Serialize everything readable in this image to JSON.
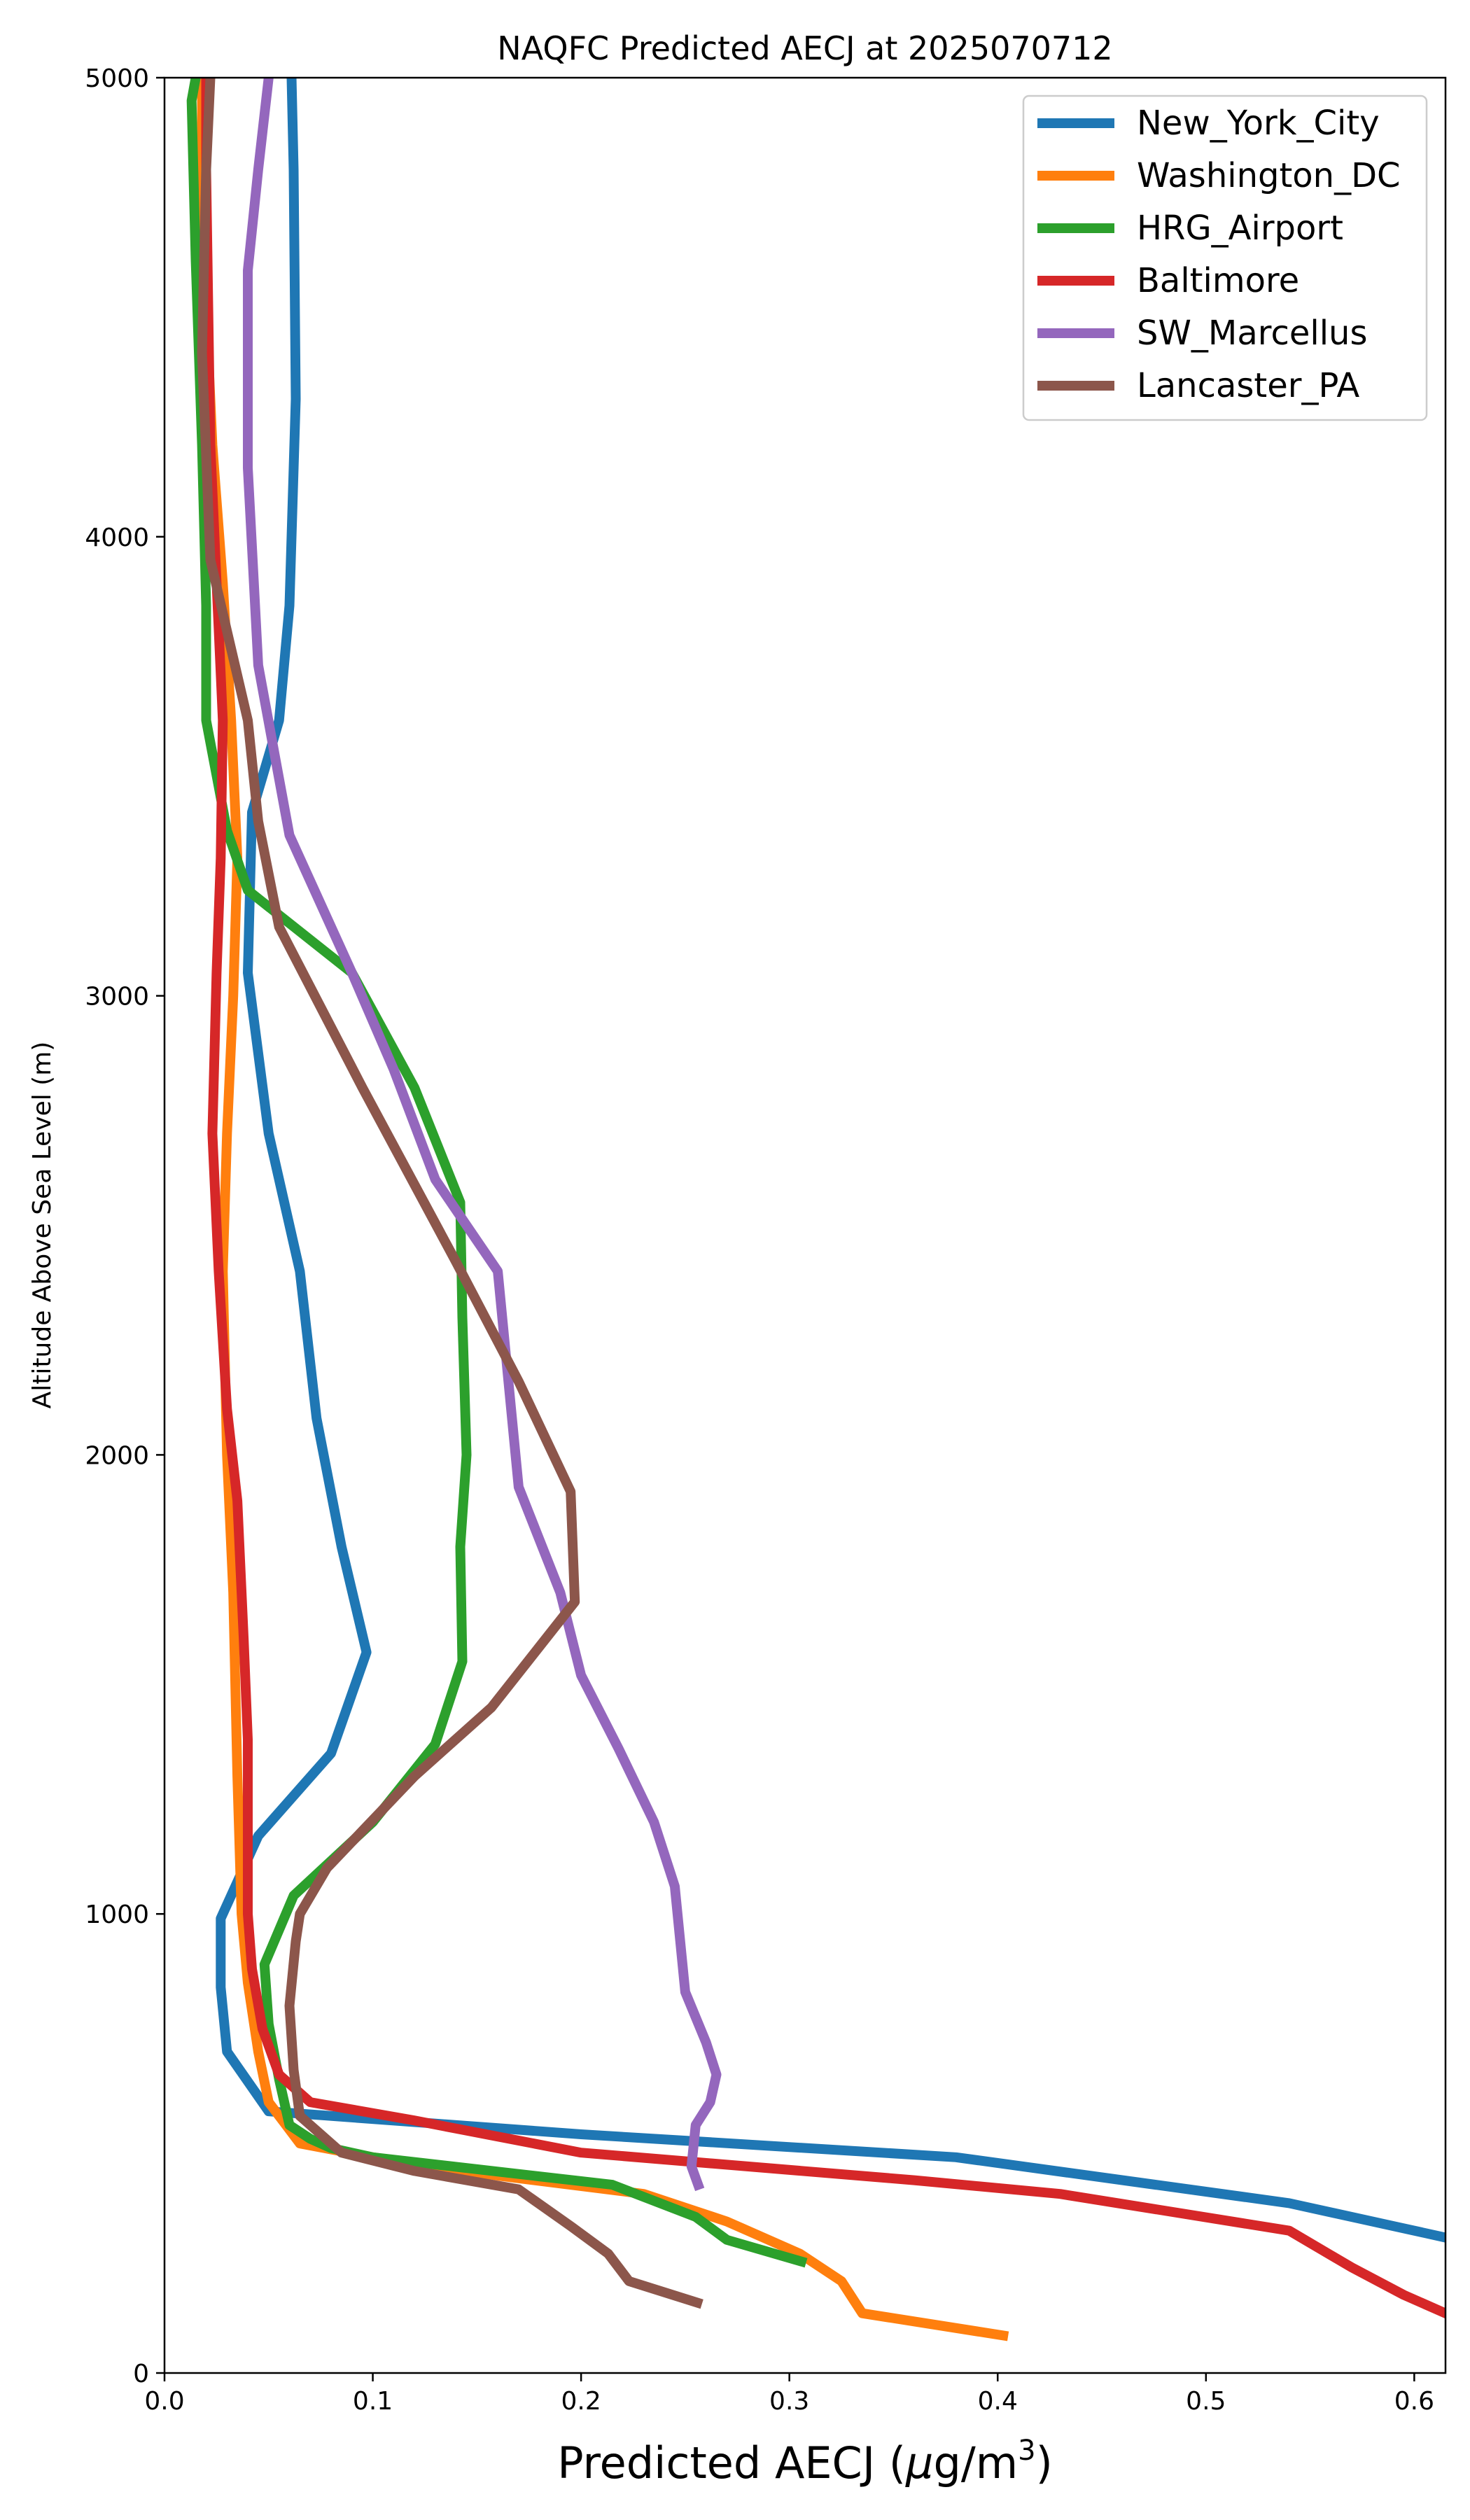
{
  "chart_data": {
    "type": "line",
    "title": "NAQFC Predicted AECJ at 2025070712",
    "xlabel_main": "Predicted AECJ (",
    "xlabel_mu": "μ",
    "xlabel_unit": "g/m",
    "xlabel_sup": "3",
    "xlabel_end": ")",
    "ylabel": "Altitude Above Sea Level (m)",
    "xlim": [
      0.0,
      0.615
    ],
    "ylim": [
      0,
      5000
    ],
    "xticks": [
      0.0,
      0.1,
      0.2,
      0.3,
      0.4,
      0.5,
      0.6
    ],
    "xtick_labels": [
      "0.0",
      "0.1",
      "0.2",
      "0.3",
      "0.4",
      "0.5",
      "0.6"
    ],
    "yticks": [
      0,
      1000,
      2000,
      3000,
      4000,
      5000
    ],
    "ytick_labels": [
      "0",
      "1000",
      "2000",
      "3000",
      "4000",
      "5000"
    ],
    "grid": false,
    "legend_position": "top-right",
    "series": [
      {
        "name": "New_York_City",
        "color": "#1f77b4",
        "points": [
          [
            0.62,
            290
          ],
          [
            0.54,
            370
          ],
          [
            0.38,
            470
          ],
          [
            0.2,
            520
          ],
          [
            0.05,
            570
          ],
          [
            0.03,
            700
          ],
          [
            0.027,
            840
          ],
          [
            0.027,
            990
          ],
          [
            0.045,
            1170
          ],
          [
            0.08,
            1350
          ],
          [
            0.097,
            1570
          ],
          [
            0.085,
            1800
          ],
          [
            0.073,
            2080
          ],
          [
            0.065,
            2400
          ],
          [
            0.05,
            2700
          ],
          [
            0.04,
            3050
          ],
          [
            0.042,
            3400
          ],
          [
            0.055,
            3600
          ],
          [
            0.06,
            3850
          ],
          [
            0.063,
            4300
          ],
          [
            0.062,
            4800
          ],
          [
            0.061,
            5000
          ]
        ]
      },
      {
        "name": "Washington_DC",
        "color": "#ff7f0e",
        "points": [
          [
            0.405,
            80
          ],
          [
            0.335,
            130
          ],
          [
            0.325,
            200
          ],
          [
            0.305,
            260
          ],
          [
            0.27,
            330
          ],
          [
            0.23,
            390
          ],
          [
            0.16,
            430
          ],
          [
            0.1,
            470
          ],
          [
            0.065,
            500
          ],
          [
            0.05,
            590
          ],
          [
            0.045,
            700
          ],
          [
            0.04,
            850
          ],
          [
            0.037,
            1000
          ],
          [
            0.035,
            1300
          ],
          [
            0.033,
            1700
          ],
          [
            0.03,
            2000
          ],
          [
            0.028,
            2400
          ],
          [
            0.03,
            2700
          ],
          [
            0.033,
            3000
          ],
          [
            0.035,
            3300
          ],
          [
            0.032,
            3600
          ],
          [
            0.028,
            3900
          ],
          [
            0.023,
            4200
          ],
          [
            0.02,
            4500
          ],
          [
            0.018,
            4800
          ],
          [
            0.018,
            5000
          ]
        ]
      },
      {
        "name": "HRG_Airport",
        "color": "#2ca02c",
        "points": [
          [
            0.308,
            240
          ],
          [
            0.27,
            290
          ],
          [
            0.255,
            340
          ],
          [
            0.215,
            410
          ],
          [
            0.1,
            470
          ],
          [
            0.08,
            490
          ],
          [
            0.07,
            510
          ],
          [
            0.06,
            540
          ],
          [
            0.055,
            640
          ],
          [
            0.05,
            760
          ],
          [
            0.048,
            890
          ],
          [
            0.062,
            1040
          ],
          [
            0.1,
            1200
          ],
          [
            0.13,
            1370
          ],
          [
            0.143,
            1550
          ],
          [
            0.142,
            1800
          ],
          [
            0.145,
            2000
          ],
          [
            0.143,
            2300
          ],
          [
            0.142,
            2550
          ],
          [
            0.12,
            2800
          ],
          [
            0.09,
            3050
          ],
          [
            0.04,
            3230
          ],
          [
            0.03,
            3360
          ],
          [
            0.02,
            3600
          ],
          [
            0.02,
            3850
          ],
          [
            0.018,
            4200
          ],
          [
            0.015,
            4600
          ],
          [
            0.013,
            4950
          ],
          [
            0.015,
            5000
          ]
        ]
      },
      {
        "name": "Baltimore",
        "color": "#d62728",
        "points": [
          [
            0.62,
            120
          ],
          [
            0.595,
            170
          ],
          [
            0.57,
            230
          ],
          [
            0.54,
            310
          ],
          [
            0.43,
            390
          ],
          [
            0.36,
            420
          ],
          [
            0.2,
            480
          ],
          [
            0.12,
            550
          ],
          [
            0.07,
            590
          ],
          [
            0.055,
            650
          ],
          [
            0.047,
            750
          ],
          [
            0.042,
            880
          ],
          [
            0.04,
            1000
          ],
          [
            0.04,
            1380
          ],
          [
            0.038,
            1600
          ],
          [
            0.035,
            1900
          ],
          [
            0.03,
            2100
          ],
          [
            0.026,
            2400
          ],
          [
            0.023,
            2700
          ],
          [
            0.025,
            3050
          ],
          [
            0.027,
            3300
          ],
          [
            0.028,
            3600
          ],
          [
            0.025,
            3900
          ],
          [
            0.022,
            4200
          ],
          [
            0.021,
            4500
          ],
          [
            0.02,
            4800
          ],
          [
            0.02,
            5000
          ]
        ]
      },
      {
        "name": "SW_Marcellus",
        "color": "#9467bd",
        "points": [
          [
            0.257,
            400
          ],
          [
            0.253,
            450
          ],
          [
            0.255,
            540
          ],
          [
            0.262,
            590
          ],
          [
            0.265,
            650
          ],
          [
            0.26,
            720
          ],
          [
            0.25,
            830
          ],
          [
            0.245,
            1060
          ],
          [
            0.235,
            1200
          ],
          [
            0.218,
            1360
          ],
          [
            0.2,
            1520
          ],
          [
            0.19,
            1700
          ],
          [
            0.17,
            1930
          ],
          [
            0.16,
            2400
          ],
          [
            0.13,
            2600
          ],
          [
            0.11,
            2840
          ],
          [
            0.09,
            3050
          ],
          [
            0.06,
            3350
          ],
          [
            0.045,
            3720
          ],
          [
            0.04,
            4150
          ],
          [
            0.04,
            4580
          ],
          [
            0.045,
            4800
          ],
          [
            0.05,
            5000
          ]
        ]
      },
      {
        "name": "Lancaster_PA",
        "color": "#8c564b",
        "points": [
          [
            0.258,
            150
          ],
          [
            0.223,
            200
          ],
          [
            0.213,
            260
          ],
          [
            0.195,
            320
          ],
          [
            0.17,
            400
          ],
          [
            0.12,
            440
          ],
          [
            0.085,
            480
          ],
          [
            0.075,
            520
          ],
          [
            0.065,
            560
          ],
          [
            0.062,
            660
          ],
          [
            0.06,
            800
          ],
          [
            0.063,
            940
          ],
          [
            0.065,
            1000
          ],
          [
            0.078,
            1100
          ],
          [
            0.12,
            1300
          ],
          [
            0.157,
            1450
          ],
          [
            0.197,
            1680
          ],
          [
            0.195,
            1920
          ],
          [
            0.17,
            2160
          ],
          [
            0.14,
            2420
          ],
          [
            0.095,
            2800
          ],
          [
            0.055,
            3150
          ],
          [
            0.045,
            3380
          ],
          [
            0.04,
            3600
          ],
          [
            0.022,
            3950
          ],
          [
            0.018,
            4400
          ],
          [
            0.02,
            4800
          ],
          [
            0.022,
            5000
          ]
        ]
      }
    ]
  }
}
